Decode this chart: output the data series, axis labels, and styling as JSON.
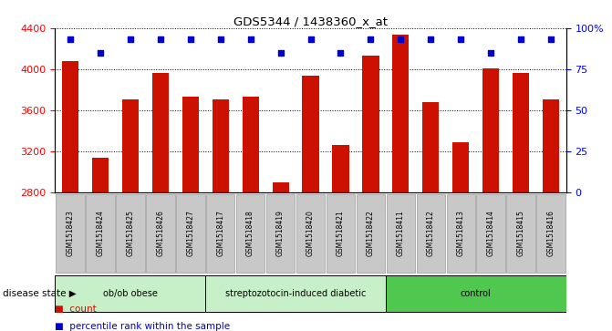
{
  "title": "GDS5344 / 1438360_x_at",
  "samples": [
    "GSM1518423",
    "GSM1518424",
    "GSM1518425",
    "GSM1518426",
    "GSM1518427",
    "GSM1518417",
    "GSM1518418",
    "GSM1518419",
    "GSM1518420",
    "GSM1518421",
    "GSM1518422",
    "GSM1518411",
    "GSM1518412",
    "GSM1518413",
    "GSM1518414",
    "GSM1518415",
    "GSM1518416"
  ],
  "counts": [
    4080,
    3130,
    3700,
    3960,
    3730,
    3700,
    3730,
    2890,
    3940,
    3260,
    4130,
    4340,
    3680,
    3290,
    4010,
    3960,
    3700
  ],
  "percentile_ranks": [
    93,
    85,
    93,
    93,
    93,
    93,
    93,
    85,
    93,
    85,
    93,
    93,
    93,
    93,
    85,
    93,
    93
  ],
  "groups": [
    {
      "label": "ob/ob obese",
      "start": 0,
      "end": 5,
      "color": "#c8f0c8"
    },
    {
      "label": "streptozotocin-induced diabetic",
      "start": 5,
      "end": 11,
      "color": "#c8f0c8"
    },
    {
      "label": "control",
      "start": 11,
      "end": 17,
      "color": "#50c850"
    }
  ],
  "ylim_left": [
    2800,
    4400
  ],
  "ylim_right": [
    0,
    100
  ],
  "yticks_left": [
    2800,
    3200,
    3600,
    4000,
    4400
  ],
  "yticks_right": [
    0,
    25,
    50,
    75,
    100
  ],
  "bar_color": "#cc1100",
  "dot_color": "#0000cc",
  "bar_width": 0.55,
  "tick_bg_color": "#c8c8c8",
  "disease_state_label": "disease state",
  "legend_count_label": "count",
  "legend_percentile_label": "percentile rank within the sample",
  "group_colors": [
    "#c8f0c8",
    "#c8f0c8",
    "#50c850"
  ]
}
